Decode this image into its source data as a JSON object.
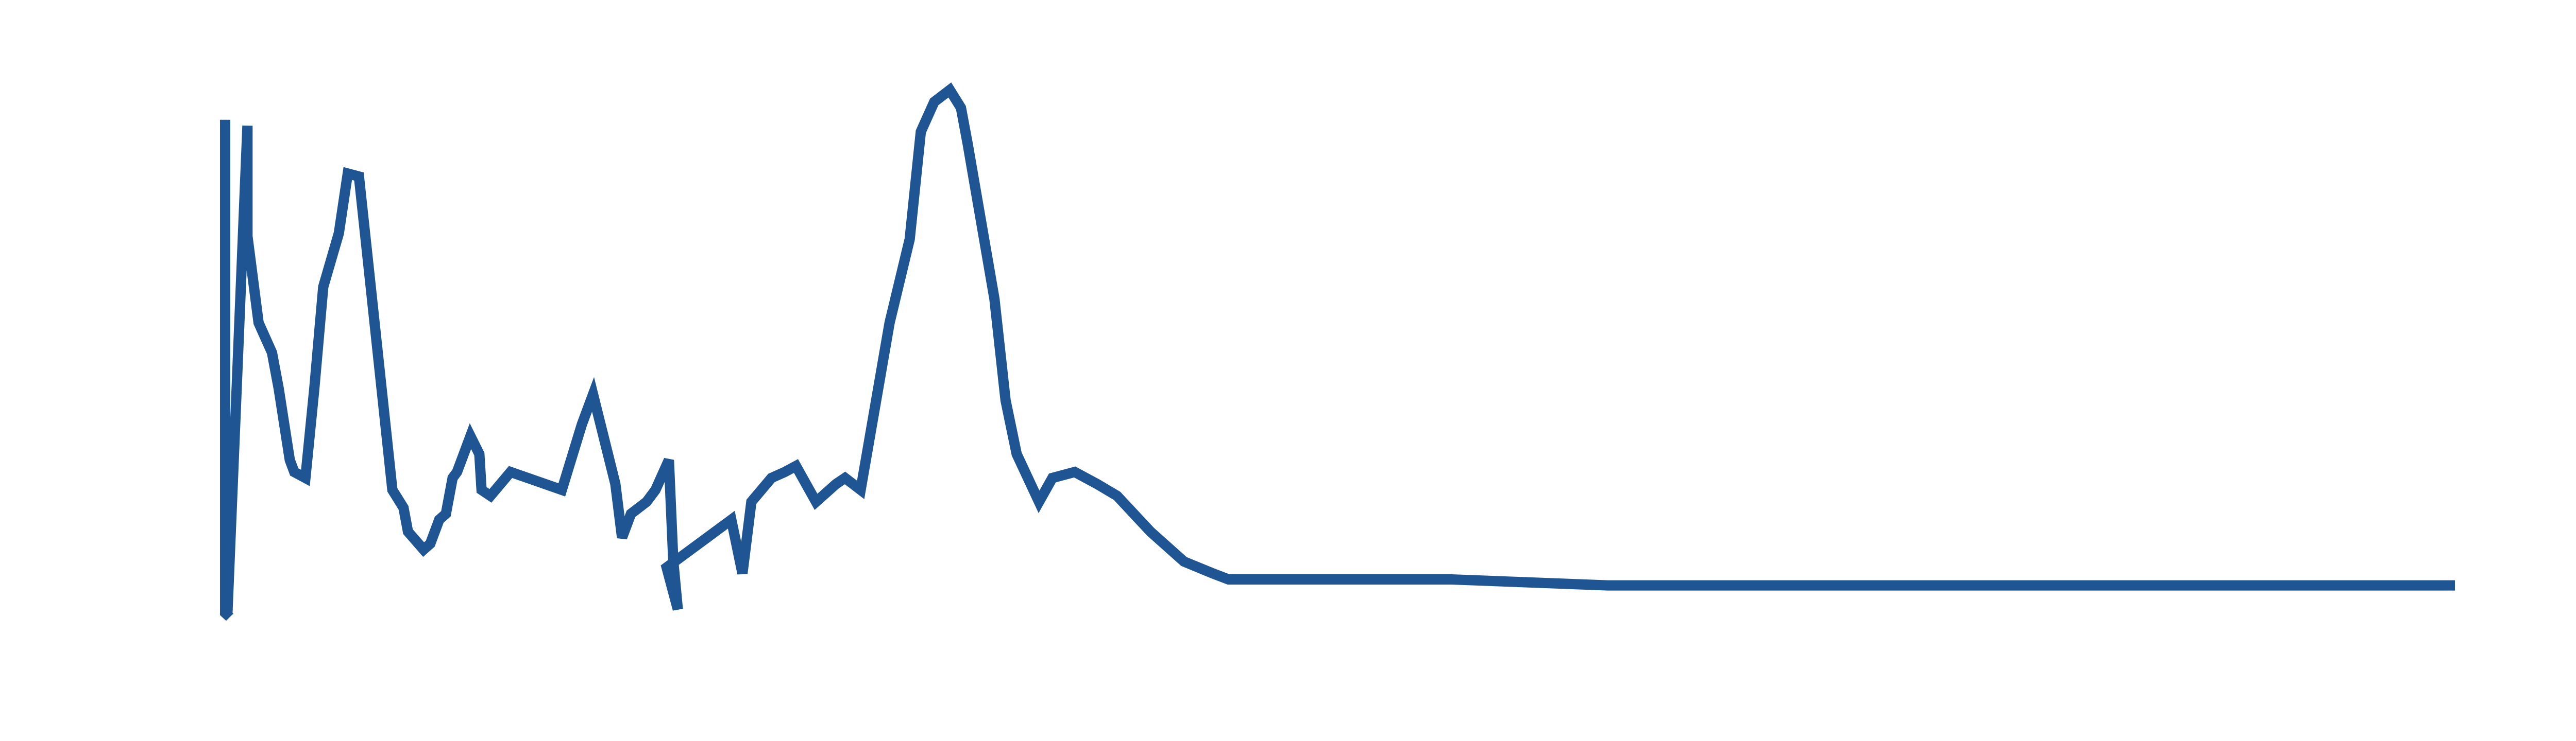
{
  "chart_data": {
    "type": "line",
    "title": "",
    "xlabel": "",
    "ylabel": "",
    "grid": false,
    "axes_visible": false,
    "legend": "none",
    "xlim": [
      0,
      1000
    ],
    "ylim": [
      0,
      100
    ],
    "color": "#1f5593",
    "series": [
      {
        "points": [
          [
            0,
            92
          ],
          [
            0,
            9.4
          ],
          [
            2,
            8.7
          ],
          [
            1,
            9.1
          ],
          [
            10,
            91
          ],
          [
            10,
            72.5
          ],
          [
            15,
            58
          ],
          [
            21,
            53
          ],
          [
            24,
            47
          ],
          [
            29,
            35
          ],
          [
            31,
            33
          ],
          [
            36,
            32
          ],
          [
            40,
            47
          ],
          [
            44,
            64
          ],
          [
            51,
            73
          ],
          [
            55,
            83
          ],
          [
            60,
            82.5
          ],
          [
            63,
            72
          ],
          [
            75,
            30
          ],
          [
            80,
            27
          ],
          [
            82,
            23
          ],
          [
            89,
            20
          ],
          [
            92,
            21
          ],
          [
            96,
            25
          ],
          [
            99,
            26
          ],
          [
            102,
            32
          ],
          [
            104,
            33
          ],
          [
            110,
            39
          ],
          [
            114,
            36
          ],
          [
            115,
            30
          ],
          [
            119,
            29
          ],
          [
            128,
            33
          ],
          [
            151,
            30
          ],
          [
            160,
            41
          ],
          [
            165,
            46
          ],
          [
            175,
            31
          ],
          [
            178,
            22
          ],
          [
            182,
            26
          ],
          [
            189,
            28
          ],
          [
            193,
            30
          ],
          [
            199,
            35
          ],
          [
            201,
            18
          ],
          [
            203,
            10
          ],
          [
            198,
            17
          ],
          [
            227,
            25
          ],
          [
            232,
            16
          ],
          [
            236,
            28
          ],
          [
            245,
            32
          ],
          [
            251,
            33
          ],
          [
            256,
            34
          ],
          [
            265,
            28
          ],
          [
            274,
            31
          ],
          [
            278,
            32
          ],
          [
            285,
            30
          ],
          [
            298,
            58
          ],
          [
            307,
            72
          ],
          [
            312,
            90
          ],
          [
            318,
            95
          ],
          [
            325,
            97
          ],
          [
            330,
            94
          ],
          [
            333,
            88
          ],
          [
            345,
            62
          ],
          [
            350,
            45
          ],
          [
            355,
            36
          ],
          [
            365,
            28
          ],
          [
            371,
            32
          ],
          [
            381,
            33
          ],
          [
            391,
            31
          ],
          [
            400,
            29
          ],
          [
            415,
            23
          ],
          [
            430,
            18
          ],
          [
            443,
            16
          ],
          [
            450,
            15
          ],
          [
            550,
            15
          ],
          [
            620,
            14
          ],
          [
            700,
            14
          ],
          [
            1000,
            14
          ]
        ]
      }
    ]
  }
}
